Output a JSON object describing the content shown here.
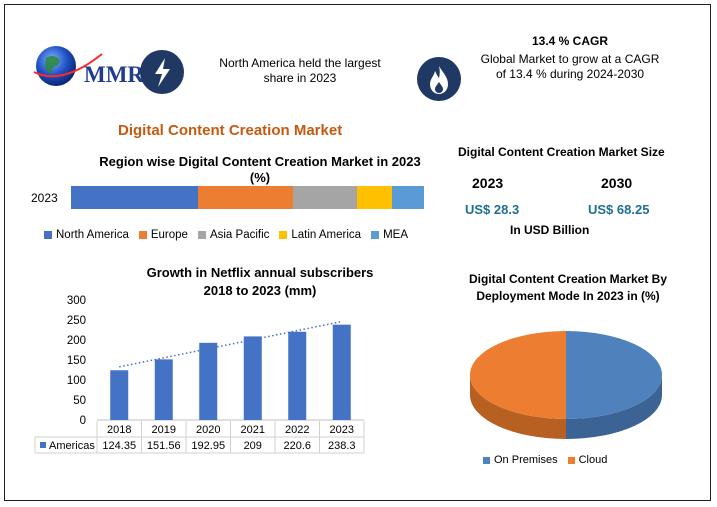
{
  "logo": {
    "text": "MMR"
  },
  "header": {
    "info1": {
      "icon": "lightning-icon",
      "text_line1": "North America held the largest",
      "text_line2": "share in 2023"
    },
    "info2": {
      "icon": "flame-icon",
      "title": "13.4 % CAGR",
      "text_line1": "Global Market to grow at a CAGR",
      "text_line2": "of 13.4 % during 2024-2030"
    }
  },
  "main_title": "Digital Content Creation Market",
  "market_size": {
    "title": "Digital Content Creation Market Size",
    "year1": "2023",
    "value1": "US$ 28.3",
    "year2": "2030",
    "value2": "US$ 68.25",
    "unit": "In USD Billion"
  },
  "colors": {
    "blue": "#4472c4",
    "orange": "#ed7d31",
    "gray": "#a5a5a5",
    "yellow": "#ffc000",
    "lightblue": "#5b9bd5",
    "accent": "#c55a11",
    "navy": "#1f3864"
  },
  "chart_data": [
    {
      "type": "bar",
      "orientation": "horizontal-stacked",
      "title_line1": "Region wise Digital Content Creation  Market in 2023",
      "title_line2": "(%)",
      "categories": [
        "2023"
      ],
      "series": [
        {
          "name": "North America",
          "values": [
            36
          ],
          "color": "#4472c4"
        },
        {
          "name": "Europe",
          "values": [
            27
          ],
          "color": "#ed7d31"
        },
        {
          "name": "Asia Pacific",
          "values": [
            18
          ],
          "color": "#a5a5a5"
        },
        {
          "name": "Latin America",
          "values": [
            10
          ],
          "color": "#ffc000"
        },
        {
          "name": "MEA",
          "values": [
            9
          ],
          "color": "#5b9bd5"
        }
      ],
      "legend_position": "bottom"
    },
    {
      "type": "bar",
      "title_line1": "Growth in Netflix annual subscribers",
      "title_line2": "2018 to 2023 (mm)",
      "categories": [
        "2018",
        "2019",
        "2020",
        "2021",
        "2022",
        "2023"
      ],
      "series": [
        {
          "name": "Americas",
          "values": [
            124.35,
            151.56,
            192.95,
            209,
            220.6,
            238.3
          ],
          "color": "#4472c4"
        }
      ],
      "value_labels": [
        "124.35",
        "151.56",
        "192.95",
        "209",
        "220.6",
        "238.3"
      ],
      "ylim": [
        0,
        300
      ],
      "yticks": [
        "0",
        "50",
        "100",
        "150",
        "200",
        "250",
        "300"
      ],
      "trendline": "linear dotted",
      "data_table": true
    },
    {
      "type": "pie",
      "title_line1": "Digital Content Creation  Market By",
      "title_line2": "Deployment Mode In 2023 in (%)",
      "series": [
        {
          "name": "On Premises",
          "value": 50,
          "color": "#4f81bd"
        },
        {
          "name": "Cloud",
          "value": 50,
          "color": "#ed7d31"
        }
      ],
      "legend_position": "bottom",
      "style": "3d"
    }
  ]
}
